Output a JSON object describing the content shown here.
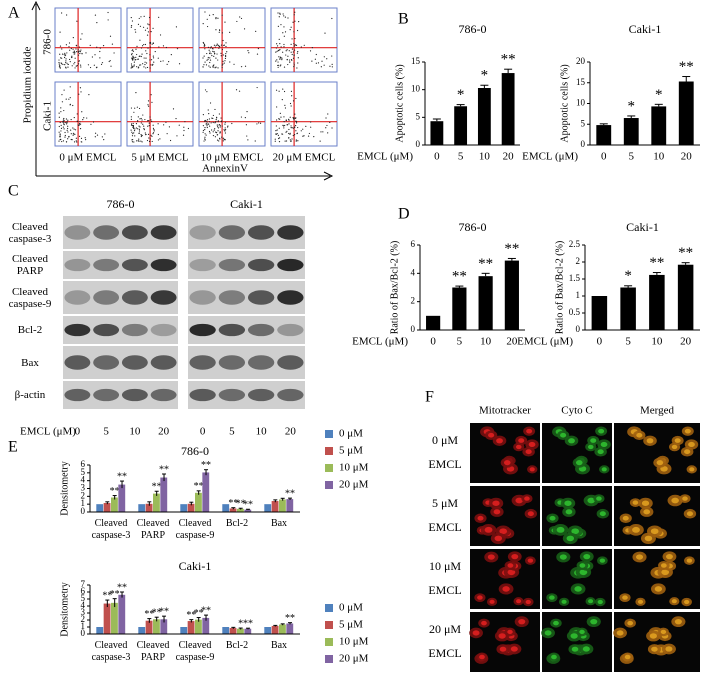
{
  "chart_data": [
    {
      "type": "bar",
      "title": "786-0",
      "x_label": "EMCL (μM)",
      "y_label": "Apoptotic cells (%)",
      "categories": [
        "0",
        "5",
        "10",
        "20"
      ],
      "values": [
        4.3,
        7,
        10.3,
        13
      ],
      "errors": [
        0.4,
        0.3,
        0.5,
        0.7
      ],
      "significance": [
        null,
        "*",
        "*",
        "**"
      ],
      "color": "#000000",
      "ylim": [
        0,
        15
      ],
      "yticks": [
        0,
        5,
        10,
        15
      ],
      "grid": false
    },
    {
      "type": "bar",
      "title": "Caki-1",
      "x_label": "EMCL (μM)",
      "y_label": "Apoptotic cells (%)",
      "categories": [
        "0",
        "5",
        "10",
        "20"
      ],
      "values": [
        4.8,
        6.5,
        9.3,
        15.3
      ],
      "errors": [
        0.3,
        0.5,
        0.5,
        1.2
      ],
      "significance": [
        null,
        "*",
        "*",
        "**"
      ],
      "color": "#000000",
      "ylim": [
        0,
        20
      ],
      "yticks": [
        0,
        5,
        10,
        15,
        20
      ],
      "grid": false
    },
    {
      "type": "bar",
      "title": "786-0",
      "x_label": "EMCL (μM)",
      "y_label": "Ratio of Bax/Bcl-2 (%)",
      "categories": [
        "0",
        "5",
        "10",
        "20"
      ],
      "values": [
        1,
        3,
        3.8,
        4.9
      ],
      "errors": [
        0,
        0.1,
        0.2,
        0.15
      ],
      "significance": [
        null,
        "**",
        "**",
        "**"
      ],
      "color": "#000000",
      "ylim": [
        0,
        6
      ],
      "yticks": [
        0,
        2,
        4,
        6
      ],
      "grid": false
    },
    {
      "type": "bar",
      "title": "Caki-1",
      "x_label": "EMCL (μM)",
      "y_label": "Ratio of Bax/Bcl-2 (%)",
      "categories": [
        "0",
        "5",
        "10",
        "20"
      ],
      "values": [
        1,
        1.25,
        1.62,
        1.92
      ],
      "errors": [
        0,
        0.05,
        0.07,
        0.06
      ],
      "significance": [
        null,
        "*",
        "**",
        "**"
      ],
      "color": "#000000",
      "ylim": [
        0,
        2.5
      ],
      "yticks": [
        0,
        0.5,
        1,
        1.5,
        2,
        2.5
      ],
      "grid": false
    },
    {
      "type": "grouped_bar",
      "title": "786-0",
      "y_label": "Densitometry",
      "categories": [
        "Cleaved caspase-3",
        "Cleaved PARP",
        "Cleaved caspase-9",
        "Bcl-2",
        "Bax"
      ],
      "series": [
        {
          "name": "0 μM",
          "color": "#4f81bd",
          "values": [
            1,
            1,
            1,
            1,
            1
          ],
          "errors": [
            0,
            0,
            0,
            0,
            0
          ],
          "significance": [
            null,
            null,
            null,
            null,
            null
          ]
        },
        {
          "name": "5 μM",
          "color": "#c0504d",
          "values": [
            1.15,
            1.05,
            1.05,
            0.45,
            1.4
          ],
          "errors": [
            0.15,
            0.25,
            0.2,
            0.1,
            0.15
          ],
          "significance": [
            null,
            null,
            null,
            "**",
            null
          ]
        },
        {
          "name": "10 μM",
          "color": "#9bbb59",
          "values": [
            1.85,
            2.35,
            2.45,
            0.4,
            1.6
          ],
          "errors": [
            0.25,
            0.3,
            0.25,
            0.08,
            0.15
          ],
          "significance": [
            "**",
            "**",
            "**",
            "**",
            null
          ]
        },
        {
          "name": "20 μM",
          "color": "#8064a2",
          "values": [
            3.5,
            4.4,
            5.05,
            0.3,
            1.65
          ],
          "errors": [
            0.45,
            0.45,
            0.35,
            0.05,
            0.12
          ],
          "significance": [
            "**",
            "**",
            "**",
            "**",
            "**"
          ]
        }
      ],
      "ylim": [
        0,
        6
      ],
      "yticks": [
        0,
        1,
        2,
        3,
        4,
        5,
        6
      ],
      "legend": "right",
      "grid": false
    },
    {
      "type": "grouped_bar",
      "title": "Caki-1",
      "y_label": "Densitometry",
      "categories": [
        "Cleaved caspase-3",
        "Cleaved PARP",
        "Cleaved caspase-9",
        "Bcl-2",
        "Bax"
      ],
      "series": [
        {
          "name": "0 μM",
          "color": "#4f81bd",
          "values": [
            1,
            1,
            1,
            1,
            1
          ],
          "errors": [
            0,
            0,
            0,
            0,
            0
          ],
          "significance": [
            null,
            null,
            null,
            null,
            null
          ]
        },
        {
          "name": "5 μM",
          "color": "#c0504d",
          "values": [
            4.35,
            1.9,
            1.85,
            0.85,
            1.15
          ],
          "errors": [
            0.5,
            0.3,
            0.2,
            0.1,
            0.08
          ],
          "significance": [
            "**",
            "**",
            "**",
            null,
            null
          ]
        },
        {
          "name": "10 μM",
          "color": "#9bbb59",
          "values": [
            4.45,
            2.1,
            2.05,
            0.75,
            1.35
          ],
          "errors": [
            0.6,
            0.3,
            0.3,
            0.1,
            0.1
          ],
          "significance": [
            "**",
            "**",
            "**",
            "*",
            null
          ]
        },
        {
          "name": "20 μM",
          "color": "#8064a2",
          "values": [
            5.6,
            2.1,
            2.3,
            0.75,
            1.5
          ],
          "errors": [
            0.4,
            0.45,
            0.4,
            0.08,
            0.12
          ],
          "significance": [
            "**",
            "**",
            "**",
            "**",
            "**"
          ]
        }
      ],
      "ylim": [
        0,
        7
      ],
      "yticks": [
        0,
        1,
        2,
        3,
        4,
        5,
        6,
        7
      ],
      "legend": "right",
      "grid": false
    }
  ],
  "figure": {
    "panel_labels": [
      "A",
      "B",
      "C",
      "D",
      "E",
      "F"
    ],
    "flow": {
      "y_label": "Propidium iodide",
      "x_label": "AnnexinV",
      "rows": [
        "786-0",
        "Caki-1"
      ],
      "columns": [
        "0 μM  EMCL",
        "5 μM  EMCL",
        "10 μM  EMCL",
        "20 μM  EMCL"
      ]
    },
    "blot": {
      "cell_lines": [
        "786-0",
        "Caki-1"
      ],
      "proteins": [
        "Cleaved caspase-3",
        "Cleaved PARP",
        "Cleaved caspase-9",
        "Bcl-2",
        "Bax",
        "β-actin"
      ],
      "x_label": "EMCL (μM)",
      "doses": [
        "0",
        "5",
        "10",
        "20"
      ]
    },
    "microscopy": {
      "columns": [
        "Mitotracker",
        "Cyto C",
        "Merged"
      ],
      "rows": [
        "0 μM",
        "5 μM",
        "10 μM",
        "20 μM"
      ],
      "row_unit": "EMCL"
    }
  }
}
